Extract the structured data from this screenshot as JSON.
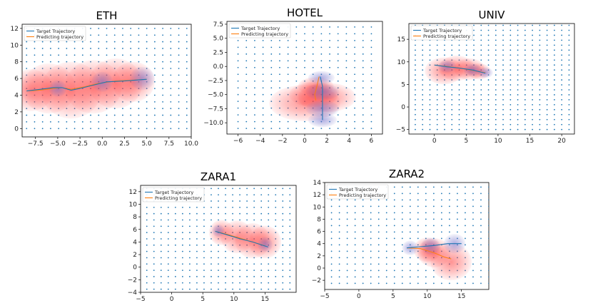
{
  "chart_data": [
    {
      "type": "scatter",
      "title": "ETH",
      "xlim": [
        -9,
        10
      ],
      "ylim": [
        -1,
        12.5
      ],
      "xticks": [
        -7.5,
        -5.0,
        -2.5,
        0.0,
        2.5,
        5.0,
        7.5,
        10.0
      ],
      "xtick_labels": [
        "−7.5",
        "−5.0",
        "−2.5",
        "0.0",
        "2.5",
        "5.0",
        "7.5",
        "10.0"
      ],
      "yticks": [
        0,
        2,
        4,
        6,
        8,
        10,
        12
      ],
      "ytick_labels": [
        "0",
        "2",
        "4",
        "6",
        "8",
        "10",
        "12"
      ],
      "grid_x": {
        "start": -8.5,
        "step": 0.9,
        "count": 21
      },
      "grid_y": {
        "start": 0,
        "step": 0.8,
        "count": 16
      },
      "legend": [
        "Target Trajectory",
        "Predicting trajectory"
      ],
      "legend_position": "top-left",
      "target": [
        [
          -8.5,
          4.5
        ],
        [
          -7,
          4.7
        ],
        [
          -5.5,
          4.9
        ],
        [
          -4.5,
          4.9
        ],
        [
          -3.5,
          4.6
        ],
        [
          -2.5,
          4.8
        ],
        [
          -1,
          5.2
        ],
        [
          0.5,
          5.6
        ],
        [
          2.5,
          5.7
        ],
        [
          5,
          5.9
        ]
      ],
      "predicted": [
        [
          -8.5,
          4.5
        ],
        [
          -7,
          4.6
        ],
        [
          -5.5,
          4.8
        ],
        [
          -4.5,
          4.9
        ],
        [
          -3.5,
          4.7
        ],
        [
          -2,
          5.0
        ],
        [
          -0.5,
          5.4
        ],
        [
          1.5,
          5.7
        ],
        [
          3.5,
          5.8
        ],
        [
          5,
          5.9
        ]
      ],
      "uncertainty": [
        {
          "x": -8.0,
          "y": 4.6,
          "r": 2.5,
          "color": "red"
        },
        {
          "x": -6.0,
          "y": 4.8,
          "r": 3.0,
          "color": "red"
        },
        {
          "x": -3.5,
          "y": 4.6,
          "r": 3.4,
          "color": "red"
        },
        {
          "x": -1.0,
          "y": 5.0,
          "r": 3.2,
          "color": "red"
        },
        {
          "x": 1.5,
          "y": 5.4,
          "r": 3.0,
          "color": "red"
        },
        {
          "x": 3.5,
          "y": 5.6,
          "r": 2.4,
          "color": "red"
        },
        {
          "x": -5.0,
          "y": 4.8,
          "r": 1.0,
          "color": "blue"
        },
        {
          "x": 0.0,
          "y": 5.6,
          "r": 1.2,
          "color": "blue"
        },
        {
          "x": 4.5,
          "y": 6.0,
          "r": 1.4,
          "color": "blue"
        }
      ]
    },
    {
      "type": "scatter",
      "title": "HOTEL",
      "xlim": [
        -7,
        7
      ],
      "ylim": [
        -12,
        8
      ],
      "xticks": [
        -6,
        -4,
        -2,
        0,
        2,
        4,
        6
      ],
      "xtick_labels": [
        "−6",
        "−4",
        "−2",
        "0",
        "2",
        "4",
        "6"
      ],
      "yticks": [
        -10.0,
        -7.5,
        -5.0,
        -2.5,
        0.0,
        2.5,
        5.0,
        7.5
      ],
      "ytick_labels": [
        "−10.0",
        "−7.5",
        "−5.0",
        "−2.5",
        "0.0",
        "2.5",
        "5.0",
        "7.5"
      ],
      "grid_x": {
        "start": -6,
        "step": 0.75,
        "count": 17
      },
      "grid_y": {
        "start": -11,
        "step": 1.2,
        "count": 16
      },
      "legend": [
        "Target Trajectory",
        "Predicting trajectory"
      ],
      "legend_position": "top-left",
      "target": [
        [
          1.4,
          -1.8
        ],
        [
          1.6,
          -3.5
        ],
        [
          1.6,
          -5.5
        ],
        [
          1.6,
          -7.5
        ],
        [
          1.6,
          -9.5
        ]
      ],
      "predicted": [
        [
          1.3,
          -1.8
        ],
        [
          1.1,
          -3.5
        ],
        [
          0.9,
          -5.0
        ],
        [
          1.0,
          -6.0
        ]
      ],
      "uncertainty": [
        {
          "x": 0.0,
          "y": -6.5,
          "r": 3.2,
          "color": "red"
        },
        {
          "x": 0.8,
          "y": -5.0,
          "r": 2.2,
          "color": "red"
        },
        {
          "x": 2.0,
          "y": -5.5,
          "r": 2.6,
          "color": "red"
        },
        {
          "x": 1.0,
          "y": -3.5,
          "r": 1.6,
          "color": "red"
        },
        {
          "x": 1.5,
          "y": -2.0,
          "r": 1.2,
          "color": "blue"
        },
        {
          "x": 1.6,
          "y": -4.5,
          "r": 1.5,
          "color": "blue"
        },
        {
          "x": 1.6,
          "y": -7.5,
          "r": 1.5,
          "color": "blue"
        },
        {
          "x": 1.6,
          "y": -9.5,
          "r": 1.3,
          "color": "blue"
        }
      ]
    },
    {
      "type": "scatter",
      "title": "UNIV",
      "xlim": [
        -4,
        22
      ],
      "ylim": [
        -6,
        18.5
      ],
      "xticks": [
        0,
        5,
        10,
        15,
        20
      ],
      "xtick_labels": [
        "0",
        "5",
        "10",
        "15",
        "20"
      ],
      "yticks": [
        -5,
        0,
        5,
        10,
        15
      ],
      "ytick_labels": [
        "−5",
        "0",
        "5",
        "10",
        "15"
      ],
      "grid_x": {
        "start": -3,
        "step": 1.15,
        "count": 22
      },
      "grid_y": {
        "start": -5,
        "step": 1.1,
        "count": 22
      },
      "legend": [
        "Target Trajectory",
        "Predicting trajectory"
      ],
      "legend_position": "top-left",
      "target": [
        [
          0,
          9.3
        ],
        [
          2,
          8.9
        ],
        [
          4,
          8.6
        ],
        [
          6,
          8.2
        ],
        [
          8,
          7.5
        ]
      ],
      "predicted": [
        [
          0,
          9.3
        ],
        [
          2,
          9.0
        ],
        [
          4,
          8.6
        ],
        [
          6,
          8.1
        ],
        [
          8,
          7.6
        ]
      ],
      "uncertainty": [
        {
          "x": 1.5,
          "y": 8.0,
          "r": 3.0,
          "color": "red"
        },
        {
          "x": 3.5,
          "y": 8.6,
          "r": 2.8,
          "color": "red"
        },
        {
          "x": 5.5,
          "y": 8.4,
          "r": 2.4,
          "color": "red"
        },
        {
          "x": 7.0,
          "y": 7.9,
          "r": 1.8,
          "color": "red"
        },
        {
          "x": 2.0,
          "y": 9.0,
          "r": 1.4,
          "color": "blue"
        },
        {
          "x": 6.0,
          "y": 8.2,
          "r": 1.4,
          "color": "blue"
        },
        {
          "x": 8.0,
          "y": 7.6,
          "r": 1.2,
          "color": "blue"
        }
      ]
    },
    {
      "type": "scatter",
      "title": "ZARA1",
      "xlim": [
        -5,
        20
      ],
      "ylim": [
        -4,
        13
      ],
      "xticks": [
        -5,
        0,
        5,
        10,
        15
      ],
      "xtick_labels": [
        "−5",
        "0",
        "5",
        "10",
        "15"
      ],
      "yticks": [
        -4,
        -2,
        0,
        2,
        4,
        6,
        8,
        10,
        12
      ],
      "ytick_labels": [
        "−4",
        "−2",
        "0",
        "2",
        "4",
        "6",
        "8",
        "10",
        "12"
      ],
      "grid_x": {
        "start": -4,
        "step": 1.15,
        "count": 22
      },
      "grid_y": {
        "start": -3.5,
        "step": 1.0,
        "count": 17
      },
      "legend": [
        "Target Trajectory",
        "Predicting trajectory"
      ],
      "legend_position": "top-left",
      "target": [
        [
          7,
          5.7
        ],
        [
          9,
          5.1
        ],
        [
          11,
          4.5
        ],
        [
          13,
          4.0
        ],
        [
          15.5,
          3.2
        ]
      ],
      "predicted": [
        [
          7,
          5.7
        ],
        [
          9,
          5.2
        ],
        [
          11,
          4.6
        ],
        [
          13,
          4.0
        ],
        [
          15,
          3.4
        ]
      ],
      "uncertainty": [
        {
          "x": 8.0,
          "y": 5.5,
          "r": 2.0,
          "color": "red"
        },
        {
          "x": 10.5,
          "y": 4.8,
          "r": 2.6,
          "color": "red"
        },
        {
          "x": 13.0,
          "y": 4.2,
          "r": 2.8,
          "color": "red"
        },
        {
          "x": 15.0,
          "y": 4.0,
          "r": 2.6,
          "color": "red"
        },
        {
          "x": 7.5,
          "y": 5.8,
          "r": 1.0,
          "color": "blue"
        },
        {
          "x": 15.0,
          "y": 3.6,
          "r": 1.2,
          "color": "blue"
        }
      ]
    },
    {
      "type": "scatter",
      "title": "ZARA2",
      "xlim": [
        -5,
        19
      ],
      "ylim": [
        -3.5,
        14
      ],
      "xticks": [
        -5,
        0,
        5,
        10,
        15
      ],
      "xtick_labels": [
        "−5",
        "0",
        "5",
        "10",
        "15"
      ],
      "yticks": [
        -2,
        0,
        2,
        4,
        6,
        8,
        10,
        12,
        14
      ],
      "ytick_labels": [
        "−2",
        "0",
        "2",
        "4",
        "6",
        "8",
        "10",
        "12",
        "14"
      ],
      "grid_x": {
        "start": -4,
        "step": 1.15,
        "count": 21
      },
      "grid_y": {
        "start": -2.5,
        "step": 1.05,
        "count": 16
      },
      "legend": [
        "Target Trajectory",
        "Predicting trajectory"
      ],
      "legend_position": "top-left",
      "target": [
        [
          7,
          3.3
        ],
        [
          9,
          3.5
        ],
        [
          11,
          3.7
        ],
        [
          13,
          4.0
        ],
        [
          15,
          4.0
        ]
      ],
      "predicted": [
        [
          7,
          3.3
        ],
        [
          9,
          3.2
        ],
        [
          11,
          2.5
        ],
        [
          12.5,
          1.8
        ],
        [
          13.5,
          1.5
        ]
      ],
      "uncertainty": [
        {
          "x": 11.0,
          "y": 2.5,
          "r": 2.4,
          "color": "red"
        },
        {
          "x": 13.5,
          "y": 1.0,
          "r": 3.0,
          "color": "red"
        },
        {
          "x": 10.0,
          "y": 3.0,
          "r": 2.0,
          "color": "red"
        },
        {
          "x": 7.5,
          "y": 3.3,
          "r": 1.2,
          "color": "blue"
        },
        {
          "x": 10.5,
          "y": 3.6,
          "r": 1.4,
          "color": "blue"
        },
        {
          "x": 14.0,
          "y": 4.0,
          "r": 1.6,
          "color": "blue"
        }
      ]
    }
  ],
  "colors": {
    "target": "#1f77b4",
    "predicted": "#ff7f0e",
    "grid_dot": "#1f77b4",
    "red": "#ff3b3b",
    "blue": "#6f6cc9"
  }
}
